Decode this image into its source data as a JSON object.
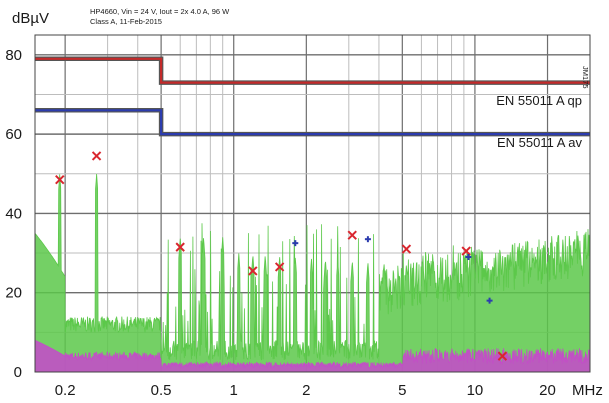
{
  "header": {
    "line1": "HP4660,  Vin = 24 V, Iout = 2x 4.0 A, 96 W",
    "line2": "Class A, 11-Feb-2015"
  },
  "chart_data": {
    "type": "line",
    "ylabel": "dBµV",
    "xlabel": "MHz",
    "side_label": "JM175",
    "x_scale": "log",
    "xlim": [
      0.15,
      30
    ],
    "ylim": [
      0,
      85
    ],
    "x_ticks": [
      0.2,
      0.5,
      1,
      2,
      5,
      10,
      20
    ],
    "x_tick_labels": [
      "0.2",
      "0.5",
      "1",
      "2",
      "5",
      "10",
      "20"
    ],
    "y_ticks": [
      0,
      20,
      40,
      60,
      80
    ],
    "y_tick_labels": [
      "0",
      "20",
      "40",
      "60",
      "80"
    ],
    "grid": true,
    "limit_lines": [
      {
        "name": "EN 55011 A qp",
        "color": "#c42a2a",
        "label_color": "#e0177a",
        "x": [
          0.15,
          0.5,
          0.5,
          30
        ],
        "y": [
          79,
          79,
          73,
          73
        ]
      },
      {
        "name": "EN 55011 A av",
        "color": "#2c3cae",
        "label_color": "#f08a1e",
        "x": [
          0.15,
          0.5,
          0.5,
          30
        ],
        "y": [
          66,
          66,
          60,
          60
        ]
      }
    ],
    "qp_markers": [
      {
        "x": 0.19,
        "y": 48.5
      },
      {
        "x": 0.27,
        "y": 54.5
      },
      {
        "x": 0.6,
        "y": 31.5
      },
      {
        "x": 1.2,
        "y": 25.5
      },
      {
        "x": 1.55,
        "y": 26.5
      },
      {
        "x": 3.1,
        "y": 34.5
      },
      {
        "x": 5.2,
        "y": 31
      },
      {
        "x": 9.2,
        "y": 30.5
      },
      {
        "x": 13,
        "y": 4
      }
    ],
    "av_markers": [
      {
        "x": 1.8,
        "y": 32.5
      },
      {
        "x": 3.6,
        "y": 33.5
      },
      {
        "x": 9.4,
        "y": 29
      },
      {
        "x": 11.5,
        "y": 18
      }
    ]
  },
  "colors": {
    "measurement_green": "#5cc84a",
    "measurement_purple": "#c24fc6",
    "grid_dark": "#6e6e6e",
    "grid_light": "#bdbdbd"
  }
}
